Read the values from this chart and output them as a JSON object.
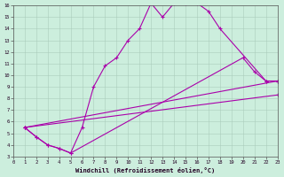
{
  "background_color": "#cceedd",
  "line_color": "#aa00aa",
  "xlabel": "Windchill (Refroidissement éolien,°C)",
  "xmin": 0,
  "xmax": 23,
  "ymin": 3,
  "ymax": 16,
  "series1_x": [
    1,
    2,
    3,
    4,
    5,
    6,
    7,
    8,
    9,
    10,
    11,
    12,
    13,
    14,
    15,
    16,
    17,
    18,
    22,
    23
  ],
  "series1_y": [
    5.5,
    4.7,
    4.0,
    3.7,
    3.3,
    5.5,
    9.0,
    10.8,
    11.5,
    13.0,
    14.0,
    16.2,
    15.0,
    16.2,
    16.2,
    16.2,
    15.5,
    14.0,
    9.5,
    9.5
  ],
  "series2_x": [
    1,
    2,
    3,
    4,
    5,
    20,
    21,
    22,
    23
  ],
  "series2_y": [
    5.5,
    4.7,
    4.0,
    3.7,
    3.3,
    11.5,
    10.3,
    9.5,
    9.5
  ],
  "series3_x": [
    1,
    23
  ],
  "series3_y": [
    5.5,
    9.5
  ],
  "series4_x": [
    1,
    23
  ],
  "series4_y": [
    5.5,
    8.3
  ],
  "yticks": [
    3,
    4,
    5,
    6,
    7,
    8,
    9,
    10,
    11,
    12,
    13,
    14,
    15,
    16
  ],
  "xticks": [
    0,
    1,
    2,
    3,
    4,
    5,
    6,
    7,
    8,
    9,
    10,
    11,
    12,
    13,
    14,
    15,
    16,
    17,
    18,
    19,
    20,
    21,
    22,
    23
  ]
}
